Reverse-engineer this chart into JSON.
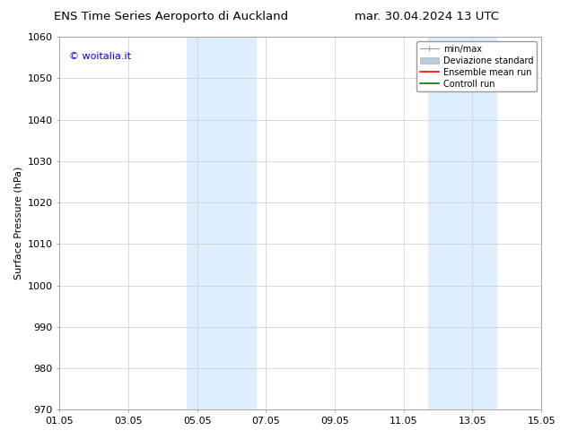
{
  "title_left": "ENS Time Series Aeroporto di Auckland",
  "title_right": "mar. 30.04.2024 13 UTC",
  "ylabel": "Surface Pressure (hPa)",
  "xlim": [
    0,
    14
  ],
  "ylim": [
    970,
    1060
  ],
  "yticks": [
    970,
    980,
    990,
    1000,
    1010,
    1020,
    1030,
    1040,
    1050,
    1060
  ],
  "xtick_labels": [
    "01.05",
    "03.05",
    "05.05",
    "07.05",
    "09.05",
    "11.05",
    "13.05",
    "15.05"
  ],
  "xtick_positions": [
    0,
    2,
    4,
    6,
    8,
    10,
    12,
    14
  ],
  "shaded_bands": [
    {
      "xmin": 3.7,
      "xmax": 5.7,
      "color": "#ddeeff"
    },
    {
      "xmin": 10.7,
      "xmax": 12.7,
      "color": "#ddeeff"
    }
  ],
  "watermark_text": "© woitalia.it",
  "watermark_color": "#0000dd",
  "legend_entries": [
    "min/max",
    "Deviazione standard",
    "Ensemble mean run",
    "Controll run"
  ],
  "legend_line_colors": [
    "#999999",
    "#bbccdd",
    "#ff0000",
    "#007700"
  ],
  "bg_color": "#ffffff",
  "grid_color": "#cccccc",
  "title_fontsize": 9.5,
  "tick_fontsize": 8,
  "ylabel_fontsize": 8,
  "watermark_fontsize": 8,
  "legend_fontsize": 7
}
